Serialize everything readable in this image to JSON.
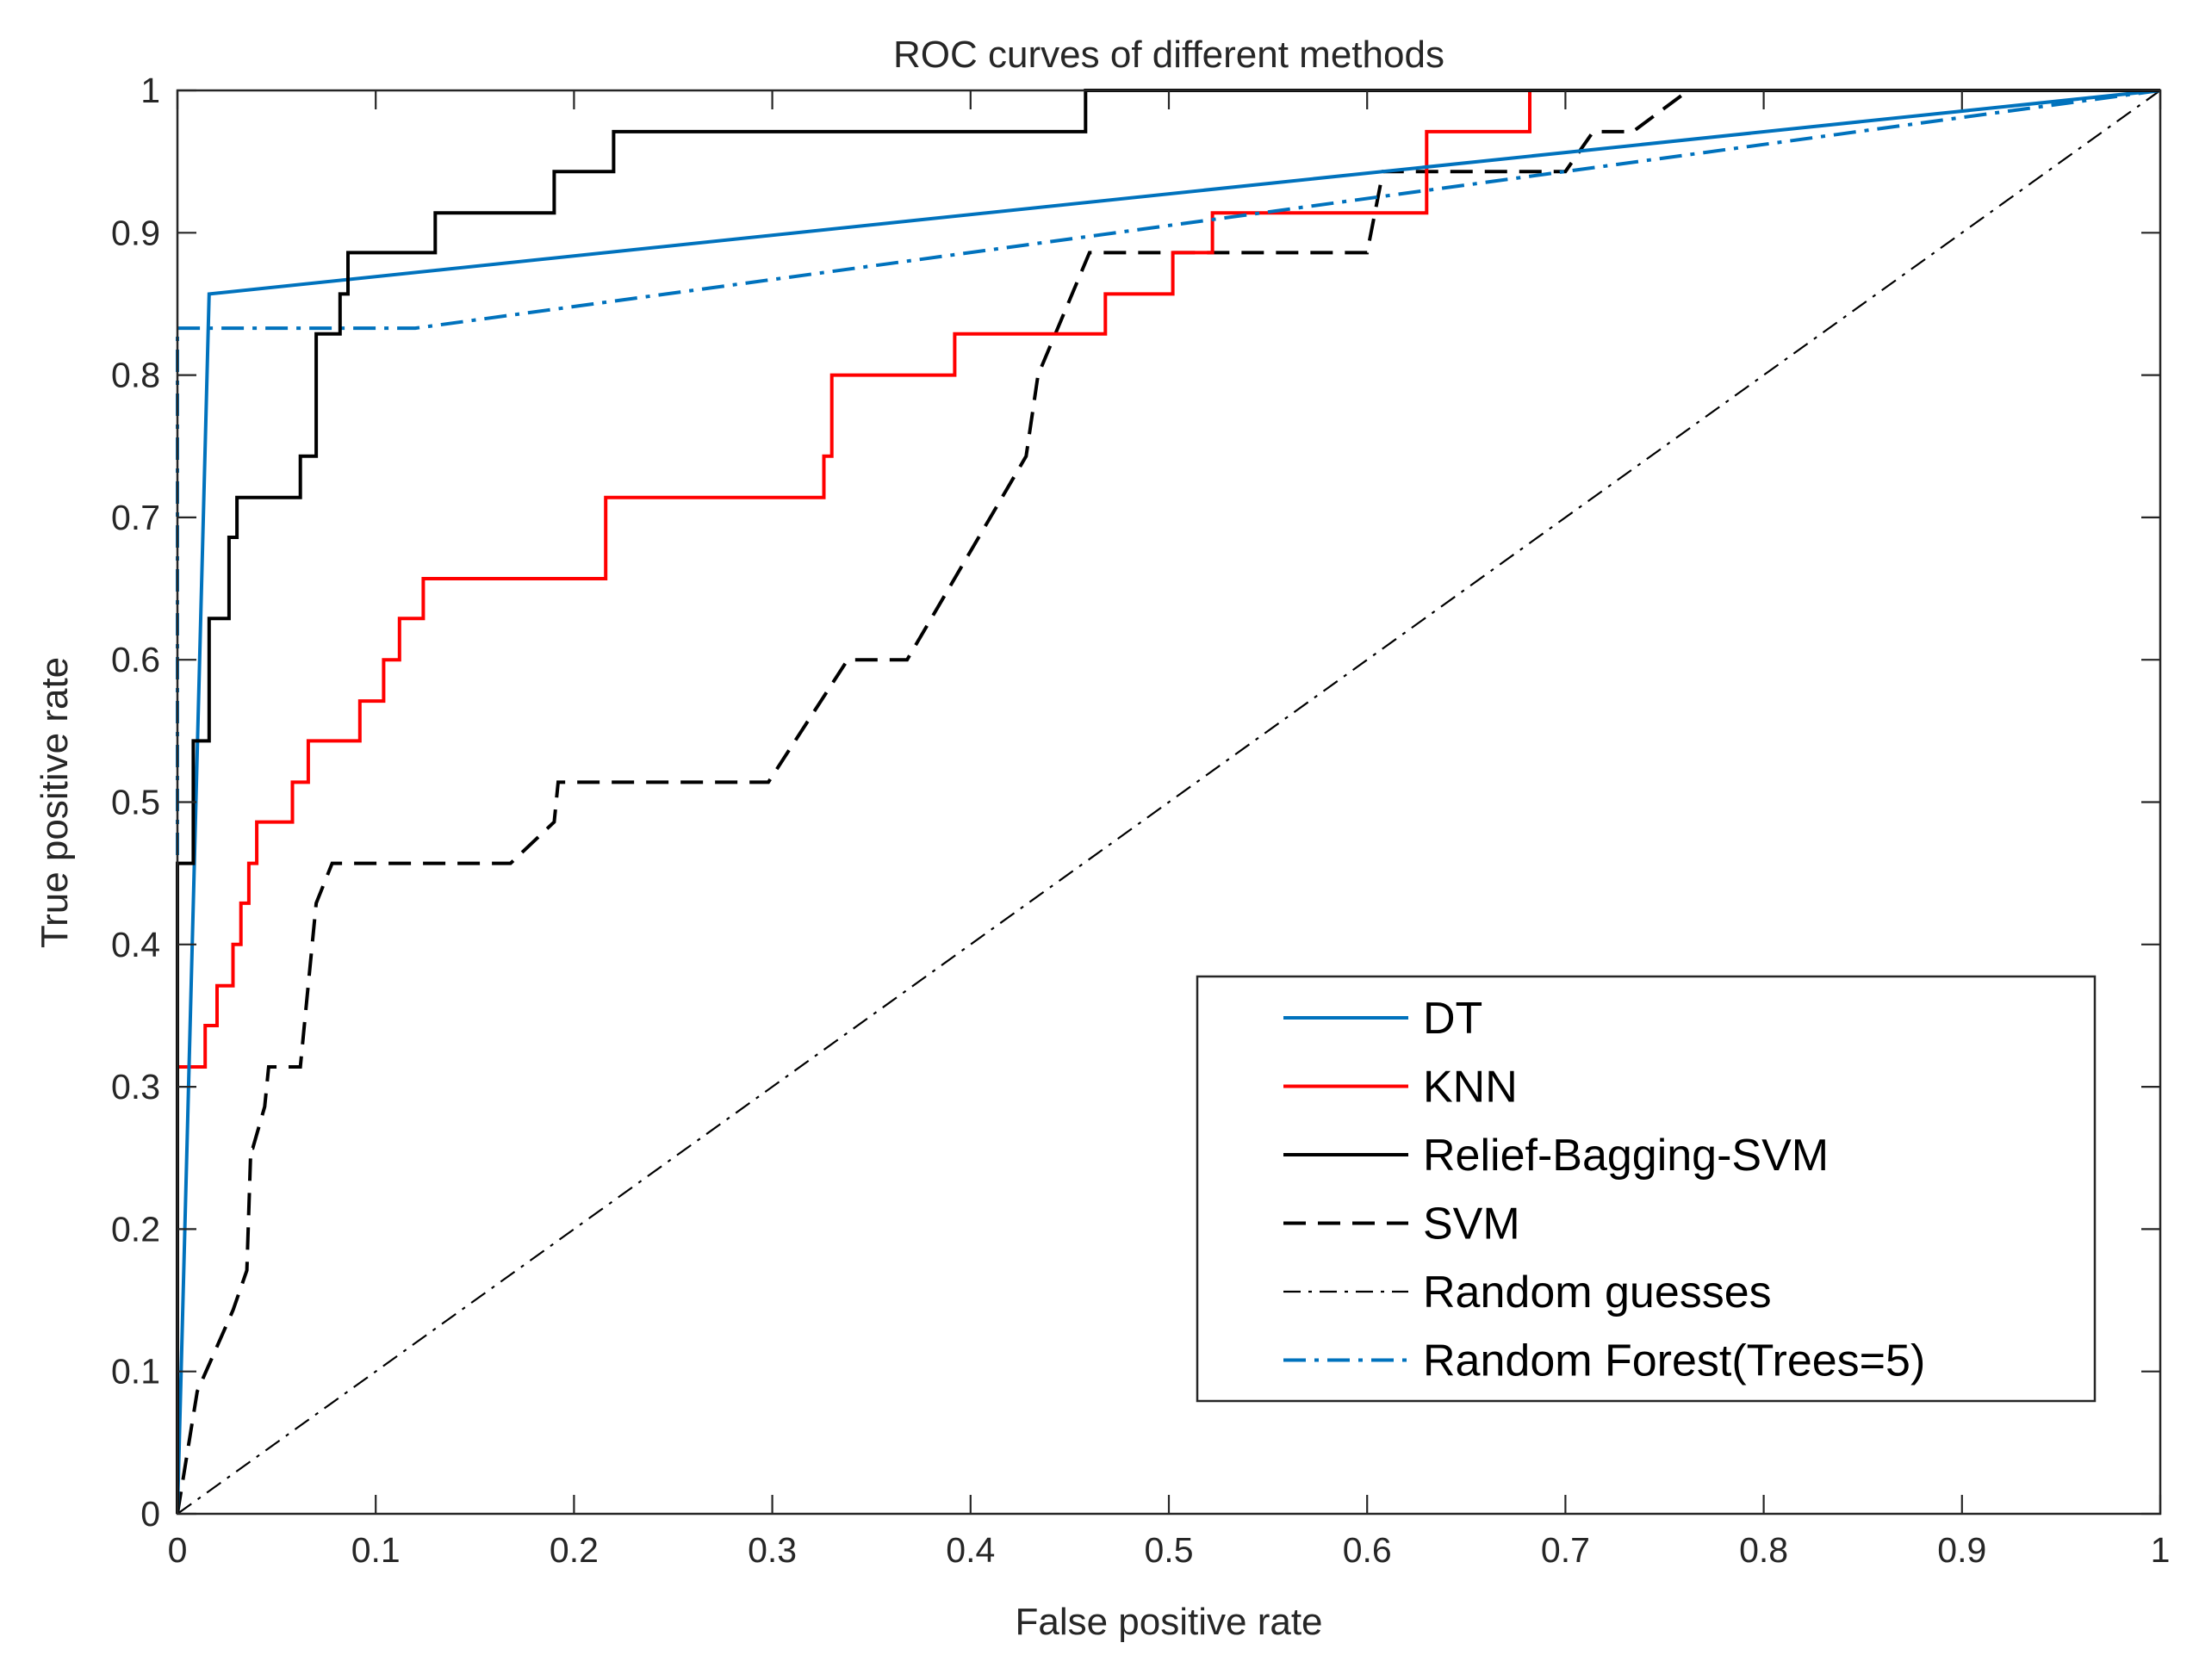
{
  "chart_data": {
    "type": "line",
    "title": "ROC curves of different methods",
    "xlabel": "False positive rate",
    "ylabel": "True positive rate",
    "xlim": [
      0,
      1
    ],
    "ylim": [
      0,
      1
    ],
    "xticks": [
      0,
      0.1,
      0.2,
      0.3,
      0.4,
      0.5,
      0.6,
      0.7,
      0.8,
      0.9,
      1
    ],
    "xtick_labels": [
      "0",
      "0.1",
      "0.2",
      "0.3",
      "0.4",
      "0.5",
      "0.6",
      "0.7",
      "0.8",
      "0.9",
      "1"
    ],
    "yticks": [
      0,
      0.1,
      0.2,
      0.3,
      0.4,
      0.5,
      0.6,
      0.7,
      0.8,
      0.9,
      1
    ],
    "ytick_labels": [
      "0",
      "0.1",
      "0.2",
      "0.3",
      "0.4",
      "0.5",
      "0.6",
      "0.7",
      "0.8",
      "0.9",
      "1"
    ],
    "grid": false,
    "legend_position": "lower-right",
    "series": [
      {
        "name": "DT",
        "color": "#0072BD",
        "style": "solid",
        "x": [
          0,
          0.016,
          1
        ],
        "y": [
          0,
          0.857,
          1
        ]
      },
      {
        "name": "KNN",
        "color": "#FF0000",
        "style": "solid",
        "x": [
          0,
          0,
          0.014,
          0.014,
          0.02,
          0.02,
          0.028,
          0.028,
          0.032,
          0.032,
          0.036,
          0.036,
          0.04,
          0.04,
          0.058,
          0.058,
          0.066,
          0.066,
          0.092,
          0.092,
          0.104,
          0.104,
          0.112,
          0.112,
          0.124,
          0.124,
          0.216,
          0.216,
          0.326,
          0.326,
          0.33,
          0.33,
          0.392,
          0.392,
          0.468,
          0.468,
          0.502,
          0.502,
          0.522,
          0.522,
          0.63,
          0.63,
          0.682,
          0.682,
          1
        ],
        "y": [
          0,
          0.314,
          0.314,
          0.343,
          0.343,
          0.371,
          0.371,
          0.4,
          0.4,
          0.429,
          0.429,
          0.457,
          0.457,
          0.486,
          0.486,
          0.514,
          0.514,
          0.543,
          0.543,
          0.571,
          0.571,
          0.6,
          0.6,
          0.629,
          0.629,
          0.657,
          0.657,
          0.714,
          0.714,
          0.743,
          0.743,
          0.8,
          0.8,
          0.829,
          0.829,
          0.857,
          0.857,
          0.886,
          0.886,
          0.914,
          0.914,
          0.971,
          0.971,
          1,
          1
        ]
      },
      {
        "name": "Relief-Bagging-SVM",
        "color": "#000000",
        "style": "solid",
        "x": [
          0,
          0,
          0.008,
          0.008,
          0.016,
          0.016,
          0.026,
          0.026,
          0.03,
          0.03,
          0.036,
          0.036,
          0.062,
          0.062,
          0.07,
          0.07,
          0.082,
          0.082,
          0.086,
          0.086,
          0.13,
          0.13,
          0.19,
          0.19,
          0.22,
          0.22,
          0.458,
          0.458,
          1
        ],
        "y": [
          0,
          0.457,
          0.457,
          0.543,
          0.543,
          0.629,
          0.629,
          0.686,
          0.686,
          0.714,
          0.714,
          0.714,
          0.714,
          0.743,
          0.743,
          0.829,
          0.829,
          0.857,
          0.857,
          0.886,
          0.886,
          0.914,
          0.914,
          0.943,
          0.943,
          0.971,
          0.971,
          1,
          1
        ]
      },
      {
        "name": "SVM",
        "color": "#000000",
        "style": "dashed",
        "x": [
          0,
          0.01,
          0.028,
          0.035,
          0.037,
          0.038,
          0.044,
          0.046,
          0.046,
          0.062,
          0.064,
          0.07,
          0.078,
          0.168,
          0.19,
          0.192,
          0.298,
          0.338,
          0.368,
          0.428,
          0.434,
          0.46,
          0.6,
          0.608,
          0.66,
          0.7,
          0.714,
          0.716,
          0.734,
          0.762,
          1
        ],
        "y": [
          0,
          0.086,
          0.143,
          0.171,
          0.257,
          0.257,
          0.286,
          0.314,
          0.314,
          0.314,
          0.343,
          0.429,
          0.457,
          0.457,
          0.486,
          0.514,
          0.514,
          0.6,
          0.6,
          0.743,
          0.8,
          0.886,
          0.886,
          0.943,
          0.943,
          0.943,
          0.971,
          0.971,
          0.971,
          1,
          1
        ]
      },
      {
        "name": "Random guesses",
        "color": "#000000",
        "style": "dashdot-thin",
        "x": [
          0,
          1
        ],
        "y": [
          0,
          1
        ]
      },
      {
        "name": "Random Forest(Trees=5)",
        "color": "#0072BD",
        "style": "dashdot",
        "x": [
          0,
          0,
          0.12,
          1
        ],
        "y": [
          0,
          0.833,
          0.833,
          1
        ]
      }
    ]
  }
}
